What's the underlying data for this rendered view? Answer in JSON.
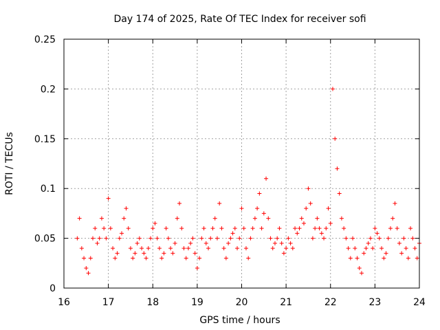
{
  "chart_data": {
    "type": "scatter",
    "title": "Day 174 of 2025, Rate Of TEC Index for receiver sofi",
    "xlabel": "GPS time / hours",
    "ylabel": "ROTI / TECUs",
    "xlim": [
      16,
      24
    ],
    "ylim": [
      0,
      0.25
    ],
    "x_ticks": [
      16,
      17,
      18,
      19,
      20,
      21,
      22,
      23,
      24
    ],
    "x_tick_labels": [
      "16",
      "17",
      "18",
      "19",
      "20",
      "21",
      "22",
      "23",
      "24"
    ],
    "y_ticks": [
      0,
      0.05,
      0.1,
      0.15,
      0.2,
      0.25
    ],
    "y_tick_labels": [
      "0",
      "0.05",
      "0.1",
      "0.15",
      "0.2",
      "0.25"
    ],
    "grid": true,
    "marker": "+",
    "color": "#ff0000",
    "series": [
      {
        "name": "ROTI",
        "x": [
          16.3,
          16.35,
          16.4,
          16.45,
          16.5,
          16.55,
          16.6,
          16.65,
          16.7,
          16.75,
          16.8,
          16.85,
          16.9,
          16.95,
          17.0,
          17.05,
          17.1,
          17.15,
          17.2,
          17.25,
          17.3,
          17.35,
          17.4,
          17.45,
          17.5,
          17.55,
          17.6,
          17.65,
          17.7,
          17.75,
          17.8,
          17.85,
          17.9,
          17.95,
          18.0,
          18.05,
          18.1,
          18.15,
          18.2,
          18.25,
          18.3,
          18.35,
          18.4,
          18.45,
          18.5,
          18.55,
          18.6,
          18.65,
          18.7,
          18.75,
          18.8,
          18.85,
          18.9,
          18.95,
          19.0,
          19.05,
          19.1,
          19.15,
          19.2,
          19.25,
          19.3,
          19.35,
          19.4,
          19.45,
          19.5,
          19.55,
          19.6,
          19.65,
          19.7,
          19.75,
          19.8,
          19.85,
          19.9,
          19.95,
          20.0,
          20.05,
          20.1,
          20.15,
          20.2,
          20.25,
          20.3,
          20.35,
          20.4,
          20.45,
          20.5,
          20.55,
          20.6,
          20.65,
          20.7,
          20.75,
          20.8,
          20.85,
          20.9,
          20.95,
          21.0,
          21.05,
          21.1,
          21.15,
          21.2,
          21.25,
          21.3,
          21.35,
          21.4,
          21.45,
          21.5,
          21.55,
          21.6,
          21.65,
          21.7,
          21.75,
          21.8,
          21.85,
          21.9,
          21.95,
          22.0,
          22.05,
          22.1,
          22.15,
          22.2,
          22.25,
          22.3,
          22.35,
          22.4,
          22.45,
          22.5,
          22.55,
          22.6,
          22.65,
          22.7,
          22.75,
          22.8,
          22.85,
          22.9,
          22.95,
          23.0,
          23.05,
          23.1,
          23.15,
          23.2,
          23.25,
          23.3,
          23.35,
          23.4,
          23.45,
          23.5,
          23.55,
          23.6,
          23.65,
          23.7,
          23.75,
          23.8,
          23.85,
          23.9,
          23.95,
          24.0
        ],
        "y": [
          0.05,
          0.07,
          0.04,
          0.03,
          0.02,
          0.015,
          0.03,
          0.05,
          0.06,
          0.045,
          0.05,
          0.07,
          0.06,
          0.05,
          0.09,
          0.06,
          0.04,
          0.03,
          0.035,
          0.05,
          0.055,
          0.07,
          0.08,
          0.06,
          0.04,
          0.03,
          0.035,
          0.045,
          0.05,
          0.04,
          0.035,
          0.03,
          0.04,
          0.05,
          0.06,
          0.065,
          0.05,
          0.04,
          0.03,
          0.035,
          0.06,
          0.05,
          0.04,
          0.035,
          0.045,
          0.07,
          0.085,
          0.06,
          0.04,
          0.03,
          0.04,
          0.045,
          0.05,
          0.035,
          0.02,
          0.03,
          0.05,
          0.06,
          0.045,
          0.04,
          0.05,
          0.06,
          0.07,
          0.05,
          0.085,
          0.06,
          0.04,
          0.03,
          0.045,
          0.05,
          0.055,
          0.06,
          0.04,
          0.05,
          0.08,
          0.06,
          0.04,
          0.03,
          0.05,
          0.06,
          0.07,
          0.08,
          0.095,
          0.06,
          0.075,
          0.11,
          0.07,
          0.05,
          0.04,
          0.045,
          0.05,
          0.06,
          0.045,
          0.035,
          0.04,
          0.05,
          0.045,
          0.04,
          0.06,
          0.055,
          0.06,
          0.07,
          0.065,
          0.08,
          0.1,
          0.085,
          0.05,
          0.06,
          0.07,
          0.06,
          0.055,
          0.05,
          0.06,
          0.08,
          0.065,
          0.2,
          0.15,
          0.12,
          0.095,
          0.07,
          0.06,
          0.05,
          0.04,
          0.03,
          0.05,
          0.04,
          0.03,
          0.02,
          0.015,
          0.035,
          0.04,
          0.045,
          0.05,
          0.04,
          0.06,
          0.055,
          0.05,
          0.04,
          0.03,
          0.035,
          0.05,
          0.06,
          0.07,
          0.085,
          0.06,
          0.045,
          0.035,
          0.05,
          0.04,
          0.03,
          0.06,
          0.05,
          0.04,
          0.03,
          0.045
        ]
      }
    ]
  }
}
